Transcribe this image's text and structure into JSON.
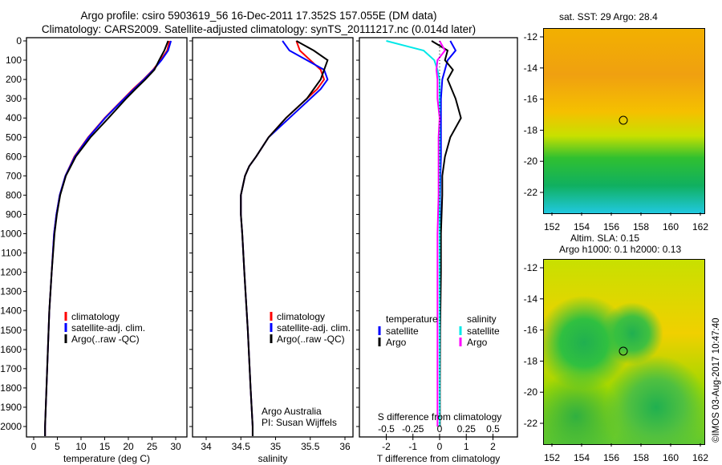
{
  "title_line1": "Argo profile: csiro 5903619_56 16-Dec-2011 17.352S 157.055E (DM data)",
  "title_line2": "Climatology: CARS2009. Satellite-adjusted climatology: synTS_20111217.nc (0.014d later)",
  "colors": {
    "climatology": "#ff0000",
    "satellite": "#0000ff",
    "argo": "#000000",
    "s_satellite": "#00e8e8",
    "s_argo": "#ff00ff"
  },
  "depth_ticks": [
    "0",
    "100",
    "200",
    "300",
    "400",
    "500",
    "600",
    "700",
    "800",
    "900",
    "1000",
    "1100",
    "1200",
    "1300",
    "1400",
    "1500",
    "1600",
    "1700",
    "1800",
    "1900",
    "2000"
  ],
  "legend": {
    "climatology": "climatology",
    "satellite": "satellite-adj. clim.",
    "argo": "Argo(..raw -QC)"
  },
  "legend_diff": {
    "temperature": "temperature",
    "salinity": "salinity",
    "satellite": "satellite",
    "argo": "Argo"
  },
  "credit": {
    "line1": "Argo Australia",
    "line2": "PI: Susan Wijffels"
  },
  "watermark": "©IMOS 03-Aug-2017 10:47:40",
  "map1": {
    "title": "sat. SST: 29 Argo: 28.4"
  },
  "map2": {
    "title1": "Altim. SLA: 0.15",
    "title2": "Argo h1000: 0.1 h2000: 0.13"
  },
  "chart_data": [
    {
      "type": "line",
      "xlabel": "temperature (deg C)",
      "ylabel": "depth",
      "xlim": [
        -1,
        31
      ],
      "ylim": [
        2050,
        0
      ],
      "xticks": [
        "0",
        "5",
        "10",
        "15",
        "20",
        "25",
        "30"
      ],
      "depth": [
        0,
        50,
        100,
        150,
        200,
        250,
        300,
        400,
        500,
        600,
        700,
        800,
        900,
        1000,
        1200,
        1400,
        1600,
        1800,
        2000,
        2050
      ],
      "series": [
        {
          "name": "climatology",
          "values": [
            28.7,
            28.2,
            26.8,
            25.2,
            23.2,
            21,
            19,
            15,
            11.5,
            8.6,
            6.7,
            5.5,
            4.8,
            4.3,
            3.8,
            3.3,
            3,
            2.7,
            2.4,
            2.4
          ]
        },
        {
          "name": "satellite-adj. clim.",
          "values": [
            29,
            28.4,
            27,
            25.3,
            23.3,
            21.2,
            19.1,
            15.1,
            11.6,
            8.7,
            6.7,
            5.5,
            4.8,
            4.3,
            3.8,
            3.3,
            3,
            2.7,
            2.4,
            2.4
          ]
        },
        {
          "name": "Argo(..raw -QC)",
          "values": [
            28.4,
            27.6,
            26.5,
            25.5,
            23.6,
            21.5,
            19.5,
            15.8,
            12,
            8.9,
            6.8,
            5.6,
            4.9,
            4.4,
            3.8,
            3.3,
            3,
            2.7,
            2.4,
            2.4
          ]
        }
      ]
    },
    {
      "type": "line",
      "xlabel": "salinity",
      "ylabel": "depth",
      "xlim": [
        33.6,
        36.1
      ],
      "ylim": [
        2050,
        0
      ],
      "xticks": [
        "34",
        "34.5",
        "35",
        "35.5",
        "36"
      ],
      "depth": [
        0,
        50,
        100,
        150,
        200,
        250,
        300,
        400,
        500,
        600,
        650,
        700,
        800,
        900,
        1000,
        1200,
        1500,
        1800,
        2000,
        2050
      ],
      "series": [
        {
          "name": "climatology",
          "values": [
            35.3,
            35.35,
            35.5,
            35.65,
            35.7,
            35.6,
            35.45,
            35.15,
            34.9,
            34.72,
            34.62,
            34.56,
            34.5,
            34.5,
            34.52,
            34.55,
            34.6,
            34.64,
            34.67,
            34.67
          ]
        },
        {
          "name": "satellite-adj. clim.",
          "values": [
            35.1,
            35.2,
            35.45,
            35.7,
            35.75,
            35.65,
            35.5,
            35.2,
            34.9,
            34.72,
            34.62,
            34.56,
            34.5,
            34.5,
            34.52,
            34.55,
            34.6,
            34.64,
            34.67,
            34.67
          ]
        },
        {
          "name": "Argo(..raw -QC)",
          "values": [
            35.3,
            35.55,
            35.75,
            35.7,
            35.65,
            35.55,
            35.45,
            35.15,
            34.9,
            34.72,
            34.62,
            34.56,
            34.5,
            34.5,
            34.52,
            34.55,
            34.6,
            34.64,
            34.67,
            34.67
          ]
        }
      ]
    },
    {
      "type": "line",
      "xlabel": "T difference from climatology",
      "x2label": "S difference from climatology",
      "xlim": [
        -2.6,
        2.6
      ],
      "ylim": [
        2050,
        0
      ],
      "xticks": [
        "-2",
        "-1",
        "0",
        "1",
        "2"
      ],
      "x2ticks": [
        "-0.5",
        "-0.25",
        "0",
        "0.25",
        "0.5"
      ],
      "depth": [
        0,
        50,
        100,
        150,
        200,
        300,
        400,
        500,
        600,
        700,
        800,
        1000,
        1200,
        1500,
        1800,
        2000
      ],
      "series": [
        {
          "name": "temperature satellite",
          "axis": "T",
          "values": [
            0.4,
            0.6,
            0.3,
            0.2,
            0.1,
            0.05,
            0.05,
            0.05,
            0.05,
            0.03,
            0.02,
            0.01,
            0,
            0,
            0,
            0
          ]
        },
        {
          "name": "temperature Argo",
          "axis": "T",
          "values": [
            -0.3,
            0.3,
            0.2,
            0.5,
            0.3,
            0.6,
            0.8,
            0.4,
            0.2,
            0.1,
            0.1,
            0.05,
            0.05,
            0.02,
            0.01,
            0.01
          ]
        },
        {
          "name": "salinity satellite",
          "axis": "S",
          "values": [
            -0.5,
            -0.15,
            -0.05,
            -0.02,
            0,
            0,
            0,
            0,
            0,
            0,
            0,
            0,
            0,
            0,
            0,
            0
          ]
        },
        {
          "name": "salinity Argo",
          "axis": "S",
          "values": [
            0,
            0.05,
            -0.02,
            -0.03,
            -0.02,
            -0.02,
            0,
            -0.01,
            -0.01,
            -0.01,
            -0.01,
            -0.02,
            -0.02,
            -0.02,
            -0.02,
            -0.02
          ]
        }
      ]
    },
    {
      "type": "heatmap",
      "title": "sat. SST: 29 Argo: 28.4",
      "xticks": [
        "152",
        "154",
        "156",
        "158",
        "160",
        "162"
      ],
      "yticks": [
        "-12",
        "-14",
        "-16",
        "-18",
        "-20",
        "-22"
      ]
    },
    {
      "type": "heatmap",
      "title": "Altim. SLA: 0.15 / Argo h1000: 0.1 h2000: 0.13",
      "xticks": [
        "152",
        "154",
        "156",
        "158",
        "160",
        "162"
      ],
      "yticks": [
        "-12",
        "-14",
        "-16",
        "-18",
        "-20",
        "-22"
      ]
    }
  ]
}
